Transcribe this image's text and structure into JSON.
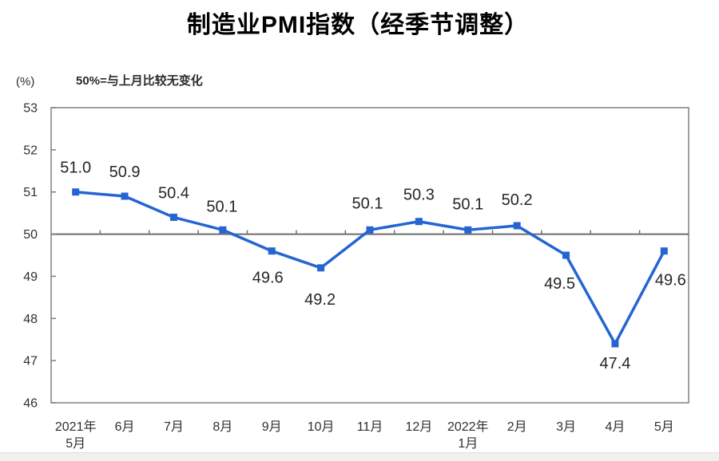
{
  "page": {
    "title": "制造业PMI指数（经季节调整）",
    "unit_label": "(%)",
    "reference_note": "50%=与上月比较无变化"
  },
  "chart_data": {
    "type": "line",
    "title": "制造业PMI指数（经季节调整）",
    "subtitle": "50%=与上月比较无变化",
    "ylabel": "(%)",
    "series_name": "制造业PMI",
    "categories": [
      "2021年\n5月",
      "6月",
      "7月",
      "8月",
      "9月",
      "10月",
      "11月",
      "12月",
      "2022年\n1月",
      "2月",
      "3月",
      "4月",
      "5月"
    ],
    "values": [
      51.0,
      50.9,
      50.4,
      50.1,
      49.6,
      49.2,
      50.1,
      50.3,
      50.1,
      50.2,
      49.5,
      47.4,
      49.6
    ],
    "ylim": [
      46,
      53
    ],
    "y_ticks": [
      46,
      47,
      48,
      49,
      50,
      51,
      52,
      53
    ],
    "reference_line": 50,
    "grid": false,
    "legend": "none",
    "marker": "square",
    "colors": {
      "line": "#2565d2",
      "axis": "#808080",
      "reference_line": "#6e6e6e",
      "title_text": "#000000",
      "axis_text": "#303030",
      "label_text": "#262626",
      "footer_strip": "#f0f0f1"
    }
  }
}
